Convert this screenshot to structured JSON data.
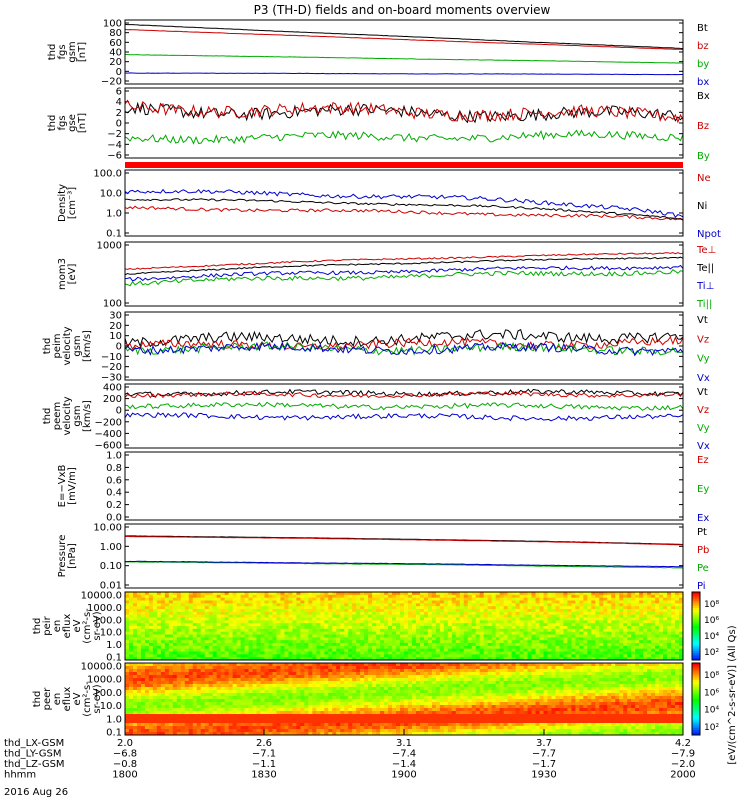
{
  "title": "P3 (TH-D) fields and on-board moments overview",
  "date": "2016 Aug 26",
  "colorbar_label": "[eV/(cm^2-s-sr-eV)] (All Qs)",
  "chart_data": [
    {
      "type": "line",
      "ylabel": [
        "thd",
        "fgs",
        "gsm",
        "[nT]"
      ],
      "yticks": [
        "100",
        "80",
        "60",
        "40",
        "20",
        "0",
        "−20"
      ],
      "ylim": [
        -20,
        100
      ],
      "series": [
        {
          "name": "Bt",
          "color": "#000000",
          "start": 95,
          "end": 47,
          "noise": 0.3
        },
        {
          "name": "bz",
          "color": "#cc0000",
          "start": 85,
          "end": 45,
          "noise": 0.3
        },
        {
          "name": "by",
          "color": "#00aa00",
          "start": 35,
          "end": 18,
          "noise": 0.3
        },
        {
          "name": "bx",
          "color": "#0000cc",
          "start": -2,
          "end": -5,
          "noise": 0.3
        }
      ]
    },
    {
      "type": "line",
      "ylabel": [
        "thd",
        "fgs",
        "gse",
        "[nT]"
      ],
      "yticks": [
        "6",
        "4",
        "2",
        "0",
        "−2",
        "−4",
        "−6"
      ],
      "ylim": [
        -7,
        6
      ],
      "series": [
        {
          "name": "Bx",
          "color": "#000000",
          "start": 2,
          "end": 1,
          "noise": 1.2
        },
        {
          "name": "Bz",
          "color": "#cc0000",
          "start": 2.5,
          "end": 1,
          "noise": 1.2
        },
        {
          "name": "By",
          "color": "#00aa00",
          "start": -3.5,
          "end": -3,
          "noise": 0.8
        }
      ]
    },
    {
      "type": "line",
      "ylabel": [
        "Density",
        "[cm⁻³]"
      ],
      "yticks": [
        "100.0",
        "10.0",
        "1.0",
        "0.1"
      ],
      "yscale": "log",
      "ylim": [
        0.1,
        100
      ],
      "series": [
        {
          "name": "Ne",
          "color": "#cc0000",
          "start": 1.8,
          "end": 0.5,
          "noise": 0.15
        },
        {
          "name": "Ni",
          "color": "#000000",
          "start": 5.0,
          "end": 0.5,
          "noise": 0.1
        },
        {
          "name": "Npot",
          "color": "#0000cc",
          "start": 12.0,
          "end": 0.6,
          "noise": 0.2
        }
      ]
    },
    {
      "type": "line",
      "ylabel": [
        "mom3",
        "[eV]"
      ],
      "yticks": [
        "1000",
        "100"
      ],
      "yscale": "log",
      "ylim": [
        50,
        5000
      ],
      "series": [
        {
          "name": "Te⊥",
          "color": "#cc0000",
          "start": 700,
          "end": 2500,
          "noise": 0.05
        },
        {
          "name": "Te||",
          "color": "#000000",
          "start": 500,
          "end": 1800,
          "noise": 0.05
        },
        {
          "name": "Ti⊥",
          "color": "#0000cc",
          "start": 350,
          "end": 900,
          "noise": 0.12
        },
        {
          "name": "Ti||",
          "color": "#00aa00",
          "start": 250,
          "end": 600,
          "noise": 0.15
        }
      ]
    },
    {
      "type": "line",
      "ylabel": [
        "thd",
        "peim",
        "velocity",
        "gsm",
        "[km/s]"
      ],
      "yticks": [
        "30",
        "20",
        "10",
        "0",
        "−10",
        "−20",
        "−30"
      ],
      "ylim": [
        -30,
        30
      ],
      "series": [
        {
          "name": "Vt",
          "color": "#000000",
          "start": 5,
          "end": 10,
          "noise": 5
        },
        {
          "name": "Vz",
          "color": "#cc0000",
          "start": 0,
          "end": 3,
          "noise": 4
        },
        {
          "name": "Vy",
          "color": "#00aa00",
          "start": -2,
          "end": -3,
          "noise": 4
        },
        {
          "name": "Vx",
          "color": "#0000cc",
          "start": -2,
          "end": -3,
          "noise": 4
        }
      ]
    },
    {
      "type": "line",
      "ylabel": [
        "thd",
        "peem",
        "velocity",
        "gsm",
        "[km/s]"
      ],
      "yticks": [
        "400",
        "200",
        "0",
        "−200",
        "−400",
        "−600"
      ],
      "ylim": [
        -600,
        400
      ],
      "series": [
        {
          "name": "Vt",
          "color": "#000000",
          "start": 280,
          "end": 290,
          "noise": 40
        },
        {
          "name": "Vz",
          "color": "#cc0000",
          "start": 250,
          "end": 260,
          "noise": 35
        },
        {
          "name": "Vy",
          "color": "#00aa00",
          "start": 80,
          "end": 50,
          "noise": 40
        },
        {
          "name": "Vx",
          "color": "#0000cc",
          "start": -100,
          "end": -130,
          "noise": 40
        }
      ]
    },
    {
      "type": "line",
      "ylabel": [
        "E=−VxB",
        "[mV/m]"
      ],
      "yticks": [
        "1.0",
        "0.8",
        "0.6",
        "0.4",
        "0.2",
        "0.0"
      ],
      "ylim": [
        0,
        1
      ],
      "series": [
        {
          "name": "Ez",
          "color": "#cc0000",
          "start": null,
          "end": null,
          "noise": 0
        },
        {
          "name": "Ey",
          "color": "#00aa00",
          "start": null,
          "end": null,
          "noise": 0
        },
        {
          "name": "Ex",
          "color": "#0000cc",
          "start": null,
          "end": null,
          "noise": 0
        }
      ]
    },
    {
      "type": "line",
      "ylabel": [
        "Pressure",
        "[nPa]"
      ],
      "yticks": [
        "10.00",
        "1.00",
        "0.10",
        "0.01"
      ],
      "yscale": "log",
      "ylim": [
        0.01,
        10
      ],
      "series": [
        {
          "name": "Pt",
          "color": "#000000",
          "start": 3.2,
          "end": 1.2,
          "noise": 0.01
        },
        {
          "name": "Pb",
          "color": "#cc0000",
          "start": 3.0,
          "end": 1.15,
          "noise": 0.01
        },
        {
          "name": "Pe",
          "color": "#00aa00",
          "start": 0.16,
          "end": 0.08,
          "noise": 0.02
        },
        {
          "name": "Pi",
          "color": "#0000cc",
          "start": 0.17,
          "end": 0.09,
          "noise": 0.02
        }
      ]
    },
    {
      "type": "heatmap",
      "ylabel": [
        "thd",
        "peir",
        "en",
        "eflux",
        "eV",
        "(cm²-s-",
        "sr-eV)"
      ],
      "yticks": [
        "10000.0",
        "1000.0",
        "100.0",
        "10.0",
        "1.0",
        "0.1"
      ],
      "colorbar_ticks": [
        "10⁸",
        "10⁶",
        "10⁴",
        "10²"
      ]
    },
    {
      "type": "heatmap",
      "ylabel": [
        "thd",
        "peer",
        "en",
        "eflux",
        "eV",
        "(cm²-s-",
        "sr-eV)"
      ],
      "yticks": [
        "10000.0",
        "1000.0",
        "100.0",
        "10.0",
        "1.0",
        "0.1"
      ],
      "colorbar_ticks": [
        "10⁸",
        "10⁶",
        "10⁴",
        "10²"
      ]
    }
  ],
  "xaxis": {
    "rows": [
      {
        "label": "thd_LX-GSM",
        "values": [
          "2.0",
          "2.6",
          "3.1",
          "3.7",
          "4.2"
        ]
      },
      {
        "label": "thd_LY-GSM",
        "values": [
          "−6.8",
          "−7.1",
          "−7.4",
          "−7.7",
          "−7.9"
        ]
      },
      {
        "label": "thd_LZ-GSM",
        "values": [
          "−0.8",
          "−1.1",
          "−1.4",
          "−1.7",
          "−2.0"
        ]
      },
      {
        "label": "hhmm",
        "values": [
          "1800",
          "1830",
          "1900",
          "1930",
          "2000"
        ]
      }
    ]
  }
}
